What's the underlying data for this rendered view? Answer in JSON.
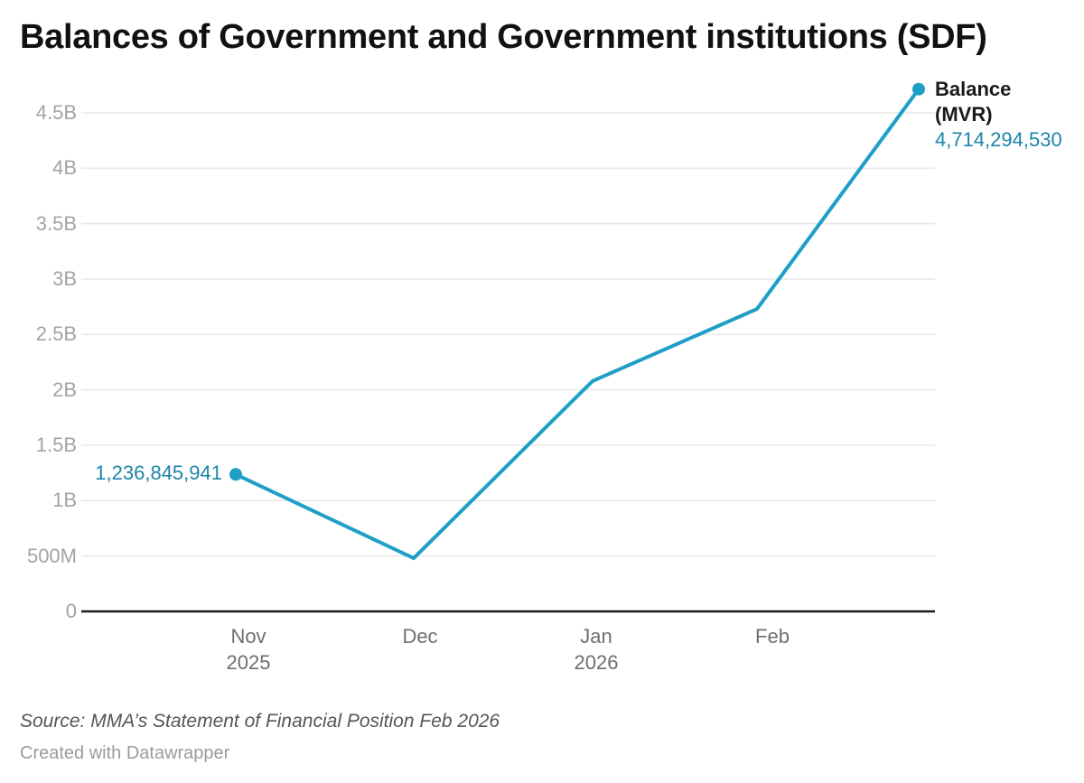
{
  "title": "Balances of Government and Government institutions (SDF)",
  "colors": {
    "line": "#1f9ec7",
    "value_text": "#1d84a8",
    "axis": "#1a1a1a",
    "grid": "#e8e8e8",
    "y_tick_text": "#a3a3a3",
    "x_tick_text": "#6f6f6f",
    "title_text": "#111111"
  },
  "chart_data": {
    "type": "line",
    "title": "Balances of Government and Government institutions (SDF)",
    "series_name": "Balance (MVR)",
    "x": [
      "2025-10-31",
      "2025-11-30",
      "2025-12-31",
      "2026-01-31",
      "2026-02-28"
    ],
    "values": [
      1236845941,
      480000000,
      2080000000,
      2730000000,
      4714294530
    ],
    "ylim": [
      0,
      4714294530
    ],
    "grid": "horizontal",
    "legend_position": "end-of-line",
    "start_label": "1,236,845,941",
    "end_label": {
      "line1": "Balance",
      "line2": "(MVR)",
      "value": "4,714,294,530"
    },
    "y_ticks": [
      {
        "label": "0",
        "value": 0
      },
      {
        "label": "500M",
        "value": 500000000
      },
      {
        "label": "1B",
        "value": 1000000000
      },
      {
        "label": "1.5B",
        "value": 1500000000
      },
      {
        "label": "2B",
        "value": 2000000000
      },
      {
        "label": "2.5B",
        "value": 2500000000
      },
      {
        "label": "3B",
        "value": 3000000000
      },
      {
        "label": "3.5B",
        "value": 3500000000
      },
      {
        "label": "4B",
        "value": 4000000000
      },
      {
        "label": "4.5B",
        "value": 4500000000
      }
    ],
    "x_ticks": [
      {
        "month": "Nov",
        "year": "2025"
      },
      {
        "month": "Dec"
      },
      {
        "month": "Jan",
        "year": "2026"
      },
      {
        "month": "Feb"
      }
    ]
  },
  "footer": {
    "source": "Source: MMA’s Statement of Financial Position Feb 2026",
    "credit": "Created with Datawrapper"
  }
}
